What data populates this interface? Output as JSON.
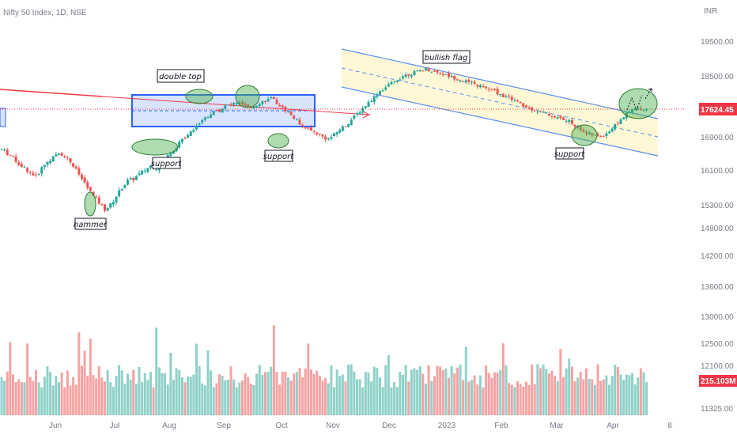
{
  "header": {
    "title": "Nifty 50 Index, 1D, NSE",
    "currency": "INR"
  },
  "chart_data": {
    "type": "candlestick",
    "y_axis": {
      "ticks": [
        "19500.00",
        "18500.00",
        "17624.45",
        "16900.00",
        "16100.00",
        "15300.00",
        "14800.00",
        "14200.00",
        "13600.00",
        "13000.00",
        "12500.00",
        "12100.00",
        "215.103M",
        "11325.00"
      ]
    },
    "x_axis": {
      "ticks": [
        "Jun",
        "Jul",
        "Aug",
        "Sep",
        "Oct",
        "Nov",
        "Dec",
        "2023",
        "Feb",
        "Mar",
        "Apr",
        "8"
      ]
    },
    "last_price": {
      "value": 17624.45,
      "label": "17624.45"
    },
    "last_volume": {
      "label": "215.103M"
    },
    "annotations": [
      "double top",
      "support",
      "support",
      "hammer",
      "bullish flag",
      "support"
    ],
    "series": [
      {
        "name": "price",
        "ohlc_close_path": [
          16600,
          16500,
          16400,
          16250,
          16150,
          16050,
          15950,
          16150,
          16300,
          16400,
          16500,
          16450,
          16300,
          16100,
          15900,
          15700,
          15500,
          15350,
          15200,
          15300,
          15500,
          15700,
          15850,
          15900,
          16000,
          16100,
          16200,
          16150,
          16300,
          16450,
          16600,
          16750,
          16900,
          17050,
          17200,
          17350,
          17450,
          17550,
          17600,
          17700,
          17750,
          17800,
          17750,
          17650,
          17700,
          17800,
          17850,
          17900,
          17800,
          17650,
          17550,
          17400,
          17250,
          17150,
          17050,
          17000,
          16900,
          16850,
          16950,
          17100,
          17200,
          17350,
          17500,
          17650,
          17800,
          17950,
          18100,
          18200,
          18300,
          18400,
          18500,
          18550,
          18600,
          18650,
          18700,
          18650,
          18600,
          18550,
          18500,
          18450,
          18400,
          18350,
          18300,
          18250,
          18200,
          18150,
          18100,
          18000,
          17950,
          17900,
          17800,
          17700,
          17650,
          17600,
          17550,
          17500,
          17450,
          17400,
          17350,
          17300,
          17200,
          17100,
          17000,
          16950,
          16900,
          16950,
          17050,
          17200,
          17350,
          17500,
          17600,
          17650,
          17624
        ]
      }
    ]
  }
}
